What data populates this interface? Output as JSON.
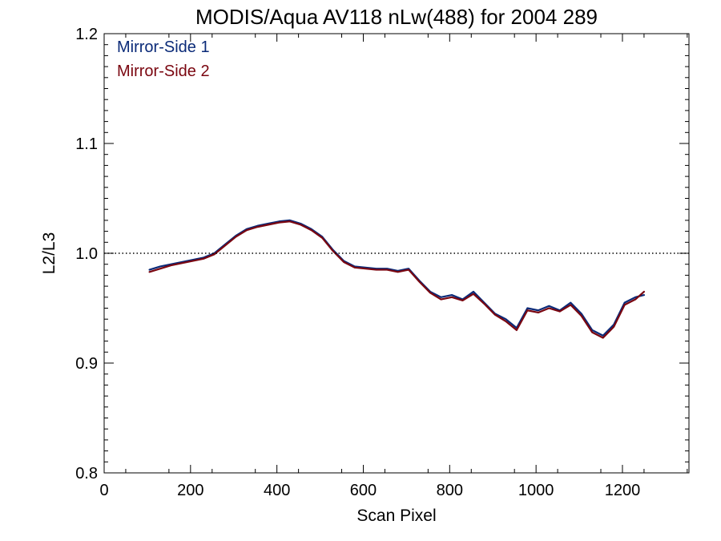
{
  "chart_data": {
    "type": "line",
    "title": "MODIS/Aqua AV118 nLw(488) for 2004 289",
    "xlabel": "Scan Pixel",
    "ylabel": "L2/L3",
    "xlim": [
      0,
      1354
    ],
    "ylim": [
      0.8,
      1.2
    ],
    "x_ticks": [
      0,
      200,
      400,
      600,
      800,
      1000,
      1200
    ],
    "x_tick_labels": [
      "0",
      "200",
      "400",
      "600",
      "800",
      "1000",
      "1200"
    ],
    "y_ticks": [
      0.8,
      0.9,
      1.0,
      1.1,
      1.2
    ],
    "y_tick_labels": [
      "0.8",
      "0.9",
      "1.0",
      "1.1",
      "1.2"
    ],
    "reference_line": 1.0,
    "legend_position": "top-left",
    "colors": {
      "mirror_side_1": "#0a2a78",
      "mirror_side_2": "#7a0610"
    },
    "x": [
      105,
      130,
      155,
      180,
      205,
      230,
      255,
      280,
      305,
      330,
      355,
      380,
      405,
      430,
      455,
      480,
      505,
      530,
      555,
      580,
      605,
      630,
      655,
      680,
      705,
      730,
      755,
      780,
      805,
      830,
      855,
      880,
      905,
      930,
      955,
      980,
      1005,
      1030,
      1055,
      1080,
      1105,
      1130,
      1155,
      1180,
      1205,
      1230,
      1250
    ],
    "series": [
      {
        "name": "Mirror-Side 1",
        "values": [
          0.985,
          0.988,
          0.99,
          0.992,
          0.994,
          0.996,
          1.0,
          1.008,
          1.016,
          1.022,
          1.025,
          1.027,
          1.029,
          1.03,
          1.027,
          1.022,
          1.015,
          1.003,
          0.993,
          0.988,
          0.987,
          0.986,
          0.986,
          0.984,
          0.986,
          0.975,
          0.965,
          0.96,
          0.962,
          0.958,
          0.965,
          0.955,
          0.945,
          0.94,
          0.932,
          0.95,
          0.948,
          0.952,
          0.948,
          0.955,
          0.945,
          0.93,
          0.925,
          0.935,
          0.955,
          0.96,
          0.962
        ]
      },
      {
        "name": "Mirror-Side 2",
        "values": [
          0.983,
          0.986,
          0.989,
          0.991,
          0.993,
          0.995,
          0.999,
          1.007,
          1.015,
          1.021,
          1.024,
          1.026,
          1.028,
          1.029,
          1.026,
          1.021,
          1.014,
          1.002,
          0.992,
          0.987,
          0.986,
          0.985,
          0.985,
          0.983,
          0.985,
          0.974,
          0.964,
          0.958,
          0.96,
          0.957,
          0.963,
          0.954,
          0.944,
          0.938,
          0.93,
          0.948,
          0.946,
          0.95,
          0.947,
          0.953,
          0.943,
          0.928,
          0.923,
          0.933,
          0.953,
          0.958,
          0.965
        ]
      }
    ]
  }
}
